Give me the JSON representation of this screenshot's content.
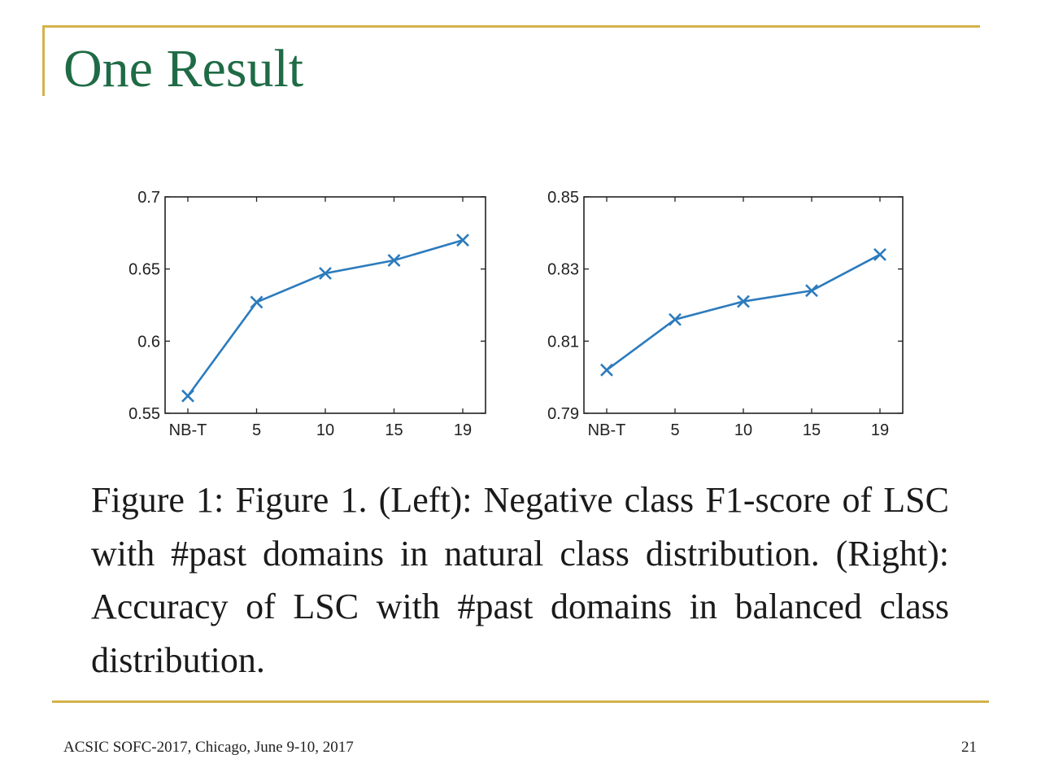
{
  "title": "One Result",
  "caption": "Figure 1: Figure 1. (Left): Negative class F1-score of LSC with #past domains in natural class distribution. (Right): Accuracy of LSC with #past domains in balanced class distribution.",
  "footer": {
    "text": "ACSIC SOFC-2017, Chicago, June 9-10, 2017",
    "page": "21"
  },
  "colors": {
    "line": "#2c7bbd",
    "title": "#1f6b45",
    "rule": "#d4b24c"
  },
  "chart_data": [
    {
      "type": "line",
      "categories": [
        "NB-T",
        "5",
        "10",
        "15",
        "19"
      ],
      "series": [
        {
          "name": "Negative class F1-score",
          "values": [
            0.562,
            0.627,
            0.647,
            0.656,
            0.67
          ]
        }
      ],
      "ylim": [
        0.55,
        0.7
      ],
      "yticks": [
        "0.55",
        "0.6",
        "0.65",
        "0.7"
      ],
      "marker": "x"
    },
    {
      "type": "line",
      "categories": [
        "NB-T",
        "5",
        "10",
        "15",
        "19"
      ],
      "series": [
        {
          "name": "Accuracy",
          "values": [
            0.802,
            0.816,
            0.821,
            0.824,
            0.834
          ]
        }
      ],
      "ylim": [
        0.79,
        0.85
      ],
      "yticks": [
        "0.79",
        "0.81",
        "0.83",
        "0.85"
      ],
      "marker": "x"
    }
  ]
}
